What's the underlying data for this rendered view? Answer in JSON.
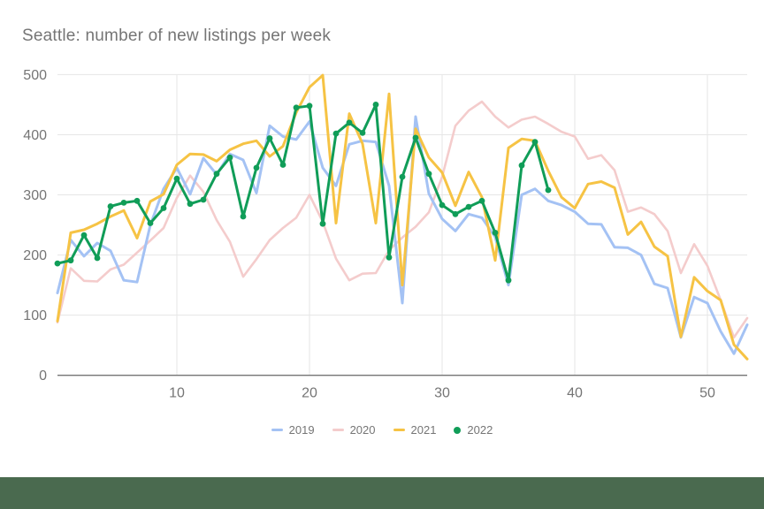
{
  "page": {
    "background": "#ffffff",
    "footer_bar_color": "#4a6a4f"
  },
  "title": "Seattle: number of new listings per week",
  "styles": {
    "grid_color": "#e6e6e6",
    "axis_line_color": "#757575",
    "tick_label_color": "#757575",
    "title_color": "#757575"
  },
  "chart_data": {
    "type": "line",
    "title": "Seattle: number of new listings per week",
    "xlabel": "",
    "ylabel": "",
    "xlim": [
      1,
      53
    ],
    "ylim": [
      0,
      500
    ],
    "grid": true,
    "legend_position": "bottom",
    "x_ticks": [
      10,
      20,
      30,
      40,
      50
    ],
    "y_ticks": [
      0,
      100,
      200,
      300,
      400,
      500
    ],
    "x": [
      1,
      2,
      3,
      4,
      5,
      6,
      7,
      8,
      9,
      10,
      11,
      12,
      13,
      14,
      15,
      16,
      17,
      18,
      19,
      20,
      21,
      22,
      23,
      24,
      25,
      26,
      27,
      28,
      29,
      30,
      31,
      32,
      33,
      34,
      35,
      36,
      37,
      38,
      39,
      40,
      41,
      42,
      43,
      44,
      45,
      46,
      47,
      48,
      49,
      50,
      51,
      52,
      53
    ],
    "series": [
      {
        "name": "2019",
        "color": "#a4c2f4",
        "marker": "none",
        "values": [
          137,
          225,
          198,
          220,
          207,
          158,
          155,
          250,
          310,
          345,
          301,
          361,
          334,
          368,
          358,
          303,
          415,
          397,
          392,
          422,
          345,
          315,
          384,
          390,
          388,
          315,
          120,
          430,
          302,
          260,
          240,
          268,
          262,
          230,
          150,
          300,
          310,
          290,
          283,
          272,
          252,
          251,
          213,
          212,
          200,
          152,
          145,
          63,
          130,
          120,
          73,
          36,
          84
        ]
      },
      {
        "name": "2020",
        "color": "#f4cccc",
        "marker": "none",
        "values": [
          88,
          178,
          157,
          156,
          176,
          184,
          204,
          224,
          245,
          295,
          332,
          305,
          258,
          222,
          164,
          193,
          225,
          245,
          262,
          300,
          255,
          194,
          158,
          169,
          170,
          208,
          229,
          247,
          271,
          330,
          415,
          440,
          455,
          430,
          412,
          425,
          430,
          418,
          405,
          397,
          360,
          366,
          341,
          272,
          279,
          268,
          240,
          170,
          218,
          182,
          125,
          63,
          95
        ]
      },
      {
        "name": "2021",
        "color": "#f6c344",
        "marker": "none",
        "values": [
          90,
          237,
          242,
          252,
          264,
          274,
          228,
          289,
          301,
          350,
          368,
          367,
          356,
          375,
          385,
          390,
          364,
          381,
          437,
          479,
          499,
          253,
          435,
          385,
          253,
          468,
          150,
          410,
          362,
          337,
          282,
          338,
          296,
          191,
          378,
          393,
          390,
          340,
          296,
          278,
          318,
          322,
          312,
          234,
          255,
          214,
          198,
          64,
          163,
          140,
          125,
          51,
          27
        ]
      },
      {
        "name": "2022",
        "color": "#109d58",
        "marker": "circle",
        "values": [
          186,
          191,
          233,
          195,
          281,
          287,
          290,
          253,
          278,
          327,
          285,
          292,
          335,
          362,
          264,
          345,
          394,
          350,
          445,
          448,
          252,
          402,
          420,
          403,
          450,
          196,
          330,
          395,
          335,
          283,
          268,
          280,
          290,
          237,
          158,
          349,
          388,
          308,
          null,
          null,
          null,
          null,
          null,
          null,
          null,
          null,
          null,
          null,
          null,
          null,
          null,
          null,
          null
        ]
      }
    ]
  }
}
